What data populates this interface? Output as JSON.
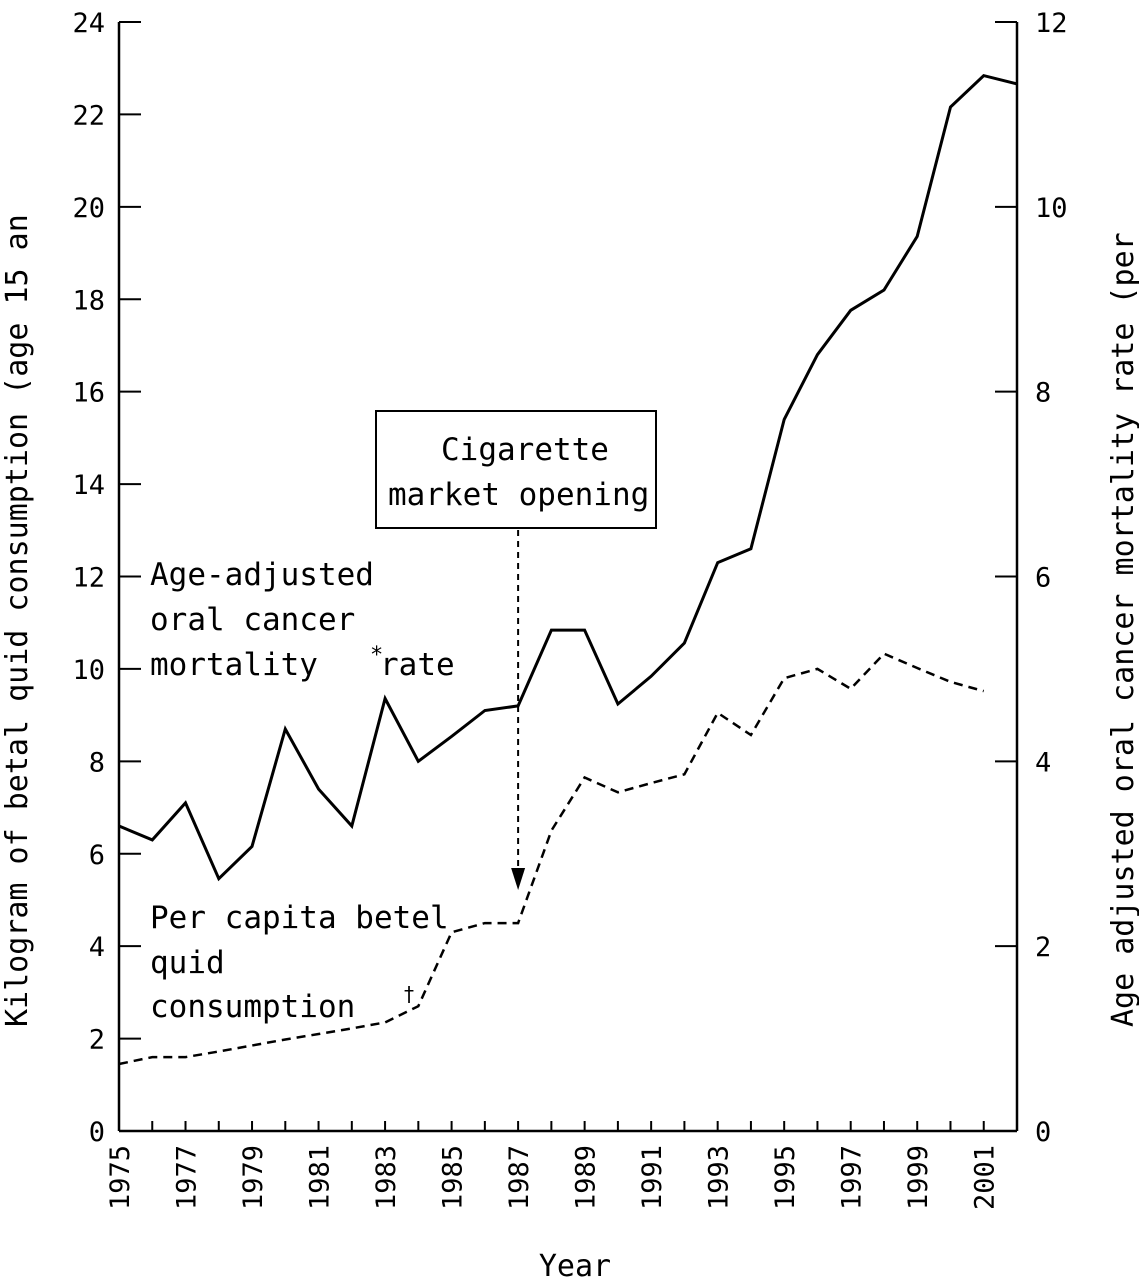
{
  "chart_data": {
    "type": "line",
    "xlabel": "Year",
    "ylabel_left": "Kilogram of betal quid consumption (age 15 an",
    "ylabel_right": "Age adjusted oral cancer mortality rate (per",
    "left_ylim": [
      0,
      24
    ],
    "right_ylim": [
      0,
      12
    ],
    "xlim": [
      1975,
      2002
    ],
    "x_ticks": [
      1975,
      1977,
      1979,
      1981,
      1983,
      1985,
      1987,
      1989,
      1991,
      1993,
      1995,
      1997,
      1999,
      2001
    ],
    "left_ticks": [
      0,
      2,
      4,
      6,
      8,
      10,
      12,
      14,
      16,
      18,
      20,
      22,
      24
    ],
    "right_ticks": [
      0,
      2,
      4,
      6,
      8,
      10,
      12
    ],
    "grid": false,
    "legend": "none",
    "series": [
      {
        "axis": "right",
        "style": "solid",
        "x": [
          1975,
          1976,
          1977,
          1978,
          1979,
          1980,
          1981,
          1982,
          1983,
          1984,
          1985,
          1986,
          1987,
          1988,
          1989,
          1990,
          1991,
          1992,
          1993,
          1994,
          1995,
          1996,
          1997,
          1998,
          1999,
          2000,
          2001,
          2002
        ],
        "values": [
          3.3,
          3.15,
          3.55,
          2.73,
          3.08,
          4.35,
          3.7,
          3.3,
          4.68,
          4.0,
          4.27,
          4.55,
          4.6,
          5.42,
          5.42,
          4.62,
          4.92,
          5.28,
          6.15,
          6.3,
          7.7,
          8.4,
          8.88,
          9.1,
          9.68,
          11.08,
          11.42,
          11.33
        ]
      },
      {
        "axis": "left",
        "style": "dashed",
        "x": [
          1975,
          1976,
          1977,
          1978,
          1979,
          1980,
          1981,
          1982,
          1983,
          1984,
          1985,
          1986,
          1987,
          1988,
          1989,
          1990,
          1991,
          1992,
          1993,
          1994,
          1995,
          1996,
          1997,
          1998,
          1999,
          2000,
          2001
        ],
        "values": [
          1.45,
          1.6,
          1.6,
          1.72,
          1.85,
          1.98,
          2.1,
          2.22,
          2.35,
          2.7,
          4.3,
          4.5,
          4.5,
          6.5,
          7.65,
          7.33,
          7.53,
          7.72,
          9.05,
          8.57,
          9.8,
          10.0,
          9.57,
          10.33,
          10.02,
          9.72,
          9.52
        ]
      }
    ],
    "annotations": {
      "box_line1": "Cigarette",
      "box_line2": "market opening",
      "box_year": 1987,
      "mortality_line1": "Age-adjusted",
      "mortality_line2": "oral cancer",
      "mortality_line3": "mortality",
      "mortality_star": "*",
      "mortality_line3b": "rate",
      "betel_line1": "Per capita betel",
      "betel_line2": "quid",
      "betel_line3": "consumption",
      "betel_dagger": "†"
    }
  }
}
